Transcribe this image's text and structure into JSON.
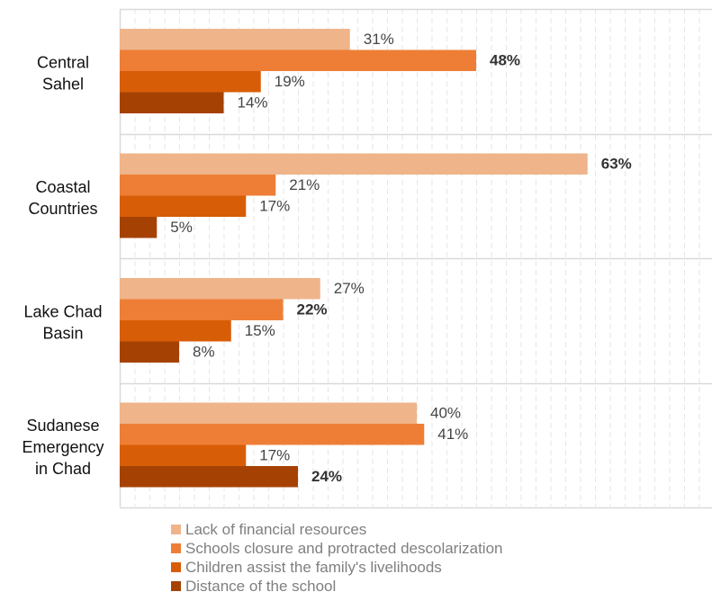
{
  "chart_data": {
    "type": "bar",
    "orientation": "horizontal",
    "categories": [
      [
        "Central",
        "Sahel"
      ],
      [
        "Coastal",
        "Countries"
      ],
      [
        "Lake Chad",
        "Basin"
      ],
      [
        "Sudanese",
        "Emergency",
        "in Chad"
      ]
    ],
    "series": [
      {
        "name": "Lack of financial resources",
        "color": "#efb48a",
        "values": [
          31,
          63,
          27,
          40
        ],
        "labels": [
          "31%",
          "63%",
          "27%",
          "40%"
        ]
      },
      {
        "name": "Schools closure and protracted descolarization",
        "color": "#ee7e35",
        "values": [
          48,
          21,
          22,
          41
        ],
        "labels": [
          "48%",
          "21%",
          "22%",
          "41%"
        ]
      },
      {
        "name": "Children assist the family's livelihoods",
        "color": "#d85d07",
        "values": [
          19,
          17,
          15,
          17
        ],
        "labels": [
          "19%",
          "17%",
          "15%",
          "17%"
        ]
      },
      {
        "name": "Distance of the school",
        "color": "#a54203",
        "values": [
          14,
          5,
          8,
          24
        ],
        "labels": [
          "14%",
          "5%",
          "8%",
          "24%"
        ]
      }
    ],
    "bold_labels": [
      [
        1,
        0
      ],
      [
        0,
        1
      ],
      [
        2,
        1
      ],
      [
        3,
        3
      ]
    ],
    "xlim": [
      0,
      80
    ],
    "grid": true,
    "legend_position": "bottom",
    "title": "",
    "xlabel": "",
    "ylabel": ""
  }
}
